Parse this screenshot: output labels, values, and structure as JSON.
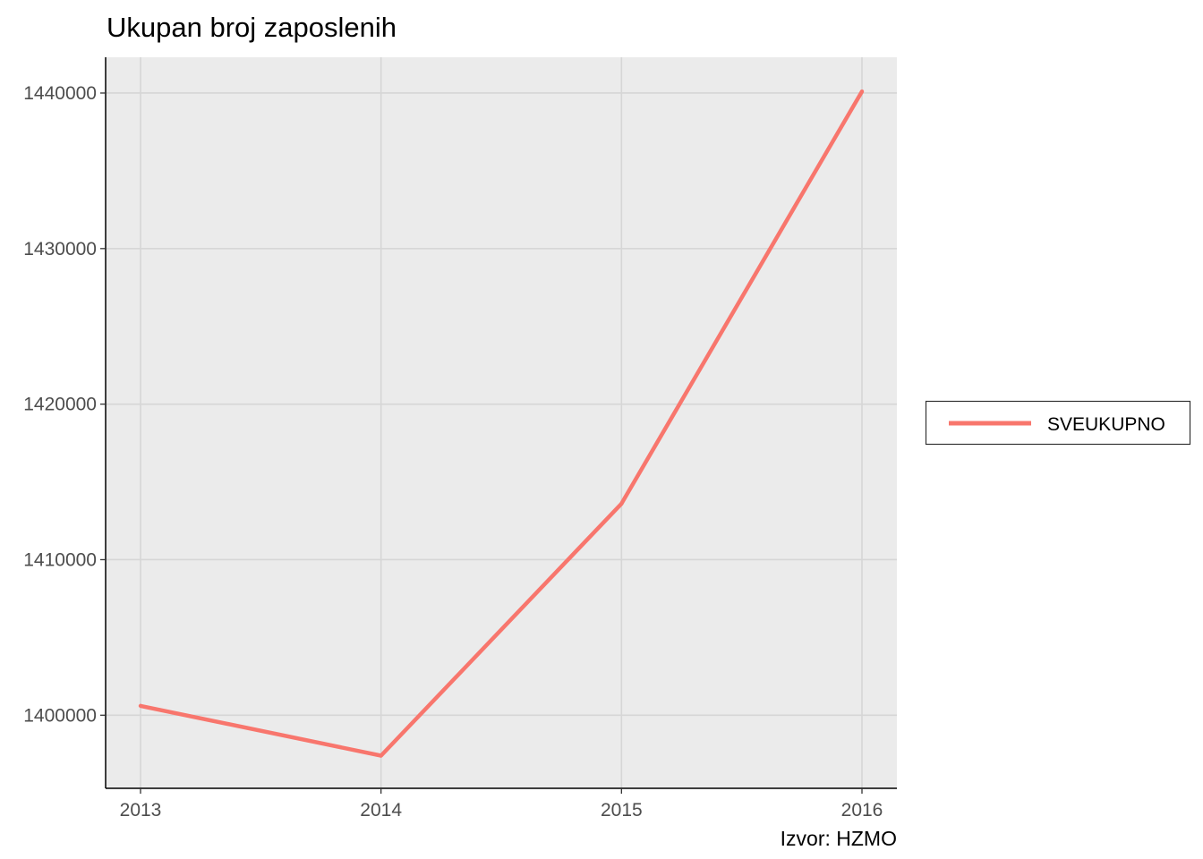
{
  "chart_data": {
    "type": "line",
    "title": "Ukupan broj zaposlenih",
    "caption": "Izvor: HZMO",
    "xlabel": "",
    "ylabel": "",
    "x": [
      "2013",
      "2014",
      "2015",
      "2016"
    ],
    "x_ticks": [
      "2013",
      "2014",
      "2015",
      "2016"
    ],
    "y_ticks": [
      "1400000",
      "1410000",
      "1420000",
      "1430000",
      "1440000"
    ],
    "ylim": [
      1395300,
      1442300
    ],
    "grid": true,
    "legend_position": "right",
    "series": [
      {
        "name": "SVEUKUPNO",
        "color": "#F8766D",
        "values": [
          1400600,
          1397400,
          1413600,
          1440100
        ]
      }
    ]
  }
}
